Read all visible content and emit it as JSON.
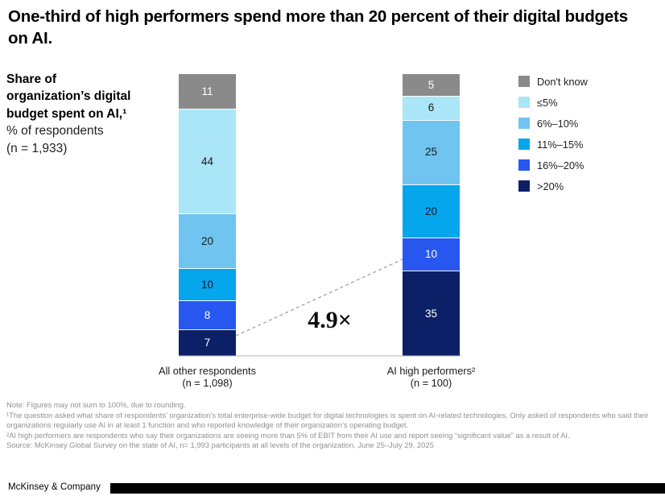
{
  "title": "One-third of high performers spend more than 20 percent of their digital budgets on AI.",
  "panel": {
    "label_bold": "Share of organization’s digital budget spent on AI,¹",
    "label_sub_1": "% of respondents",
    "label_sub_2": "(n = 1,933)"
  },
  "chart_data": {
    "type": "bar",
    "subtype": "stacked-column-100",
    "title": "Share of organization’s digital budget spent on AI, % of respondents (n = 1,933)",
    "ylim": [
      0,
      100
    ],
    "grid": false,
    "legend_position": "right",
    "annotation": {
      "ratio_label": "4.9×",
      "connects": ">20% segment of both columns"
    },
    "categories": [
      {
        "label": "All other respondents",
        "sublabel": "(n = 1,098)"
      },
      {
        "label": "AI high performers²",
        "sublabel": "(n = 100)"
      }
    ],
    "series": [
      {
        "name": "Don't know",
        "color": "#8A8A8A",
        "text_color": "#ffffff",
        "dotted": false,
        "values": [
          11,
          5
        ]
      },
      {
        "name": "≤5%",
        "color": "#ABE5F8",
        "text_color": "#1a1a1a",
        "dotted": true,
        "values": [
          44,
          6
        ]
      },
      {
        "name": "6%–10%",
        "color": "#6FC5EF",
        "text_color": "#1a1a1a",
        "dotted": false,
        "values": [
          20,
          25
        ]
      },
      {
        "name": "11%–15%",
        "color": "#05A6EC",
        "text_color": "#15152a",
        "dotted": false,
        "values": [
          10,
          20
        ]
      },
      {
        "name": "16%–20%",
        "color": "#2857F0",
        "text_color": "#ffffff",
        "dotted": false,
        "values": [
          8,
          10
        ]
      },
      {
        "name": ">20%",
        "color": "#0B2066",
        "text_color": "#ffffff",
        "dotted": false,
        "values": [
          7,
          35
        ]
      }
    ]
  },
  "ratio_annotation": "4.9×",
  "footnotes": [
    "Note: Figures may not sum to 100%, due to rounding.",
    "¹The question asked what share of respondents’ organization’s total enterprise-wide budget for digital technologies is spent on AI-related technologies. Only asked of respondents who said their organizations regularly use AI in at least 1 function and who reported knowledge of their organization’s operating budget.",
    "²AI high performers are respondents who say their organizations are seeing more than 5% of EBIT from their AI use and report seeing “significant value” as a result of AI.",
    "Source: McKinsey Global Survey on the state of AI, n= 1,993 participants at all levels of the organization, June 25–July 29, 2025"
  ],
  "footer": {
    "wordmark": "McKinsey & Company"
  }
}
